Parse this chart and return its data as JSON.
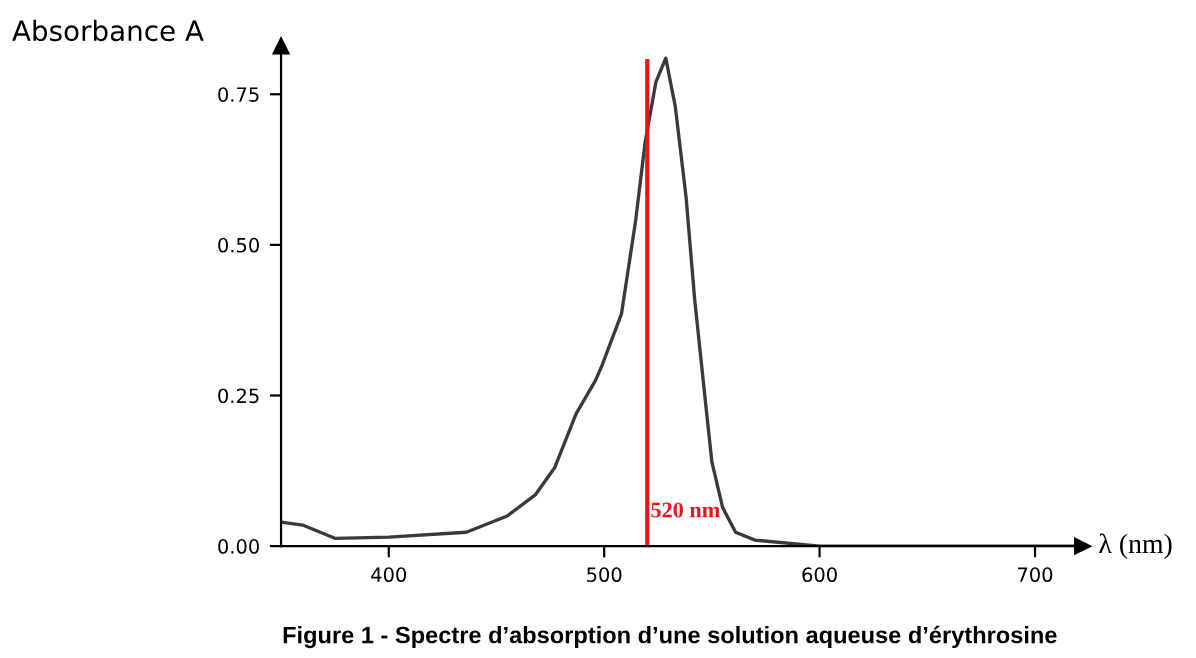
{
  "chart_data": {
    "type": "line",
    "title": "Figure 1 - Spectre d’absorption d’une solution aqueuse d’érythrosine",
    "xlabel": "λ (nm)",
    "ylabel": "Absorbance A",
    "x": [
      350,
      360,
      375,
      400,
      436,
      455,
      468,
      477,
      487,
      496,
      499,
      508,
      514.6,
      519,
      524,
      528.6,
      533,
      538,
      542,
      547,
      550,
      555,
      561,
      570,
      600,
      650,
      700,
      722
    ],
    "series": [
      {
        "color": "#3a3a3a",
        "values": [
          0.04,
          0.035,
          0.013,
          0.015,
          0.023,
          0.05,
          0.085,
          0.13,
          0.22,
          0.275,
          0.3,
          0.385,
          0.54,
          0.67,
          0.77,
          0.81,
          0.73,
          0.58,
          0.41,
          0.24,
          0.14,
          0.064,
          0.023,
          0.01,
          0.0,
          0.0,
          0.0,
          0.0
        ]
      }
    ],
    "xlim": [
      350,
      722
    ],
    "ylim": [
      0,
      0.83
    ],
    "xticks": [
      400,
      500,
      600,
      700
    ],
    "yticks": [
      {
        "value": 0,
        "label": "0.00"
      },
      0.25,
      {
        "value": 0.5,
        "label": "0.50"
      },
      0.75
    ],
    "ref_lines": [
      {
        "axis": "x",
        "value": 520,
        "label": "520 nm",
        "color": "#e8141c"
      }
    ],
    "grid": false,
    "legend": false,
    "marker": "none",
    "line_style": "solid"
  }
}
